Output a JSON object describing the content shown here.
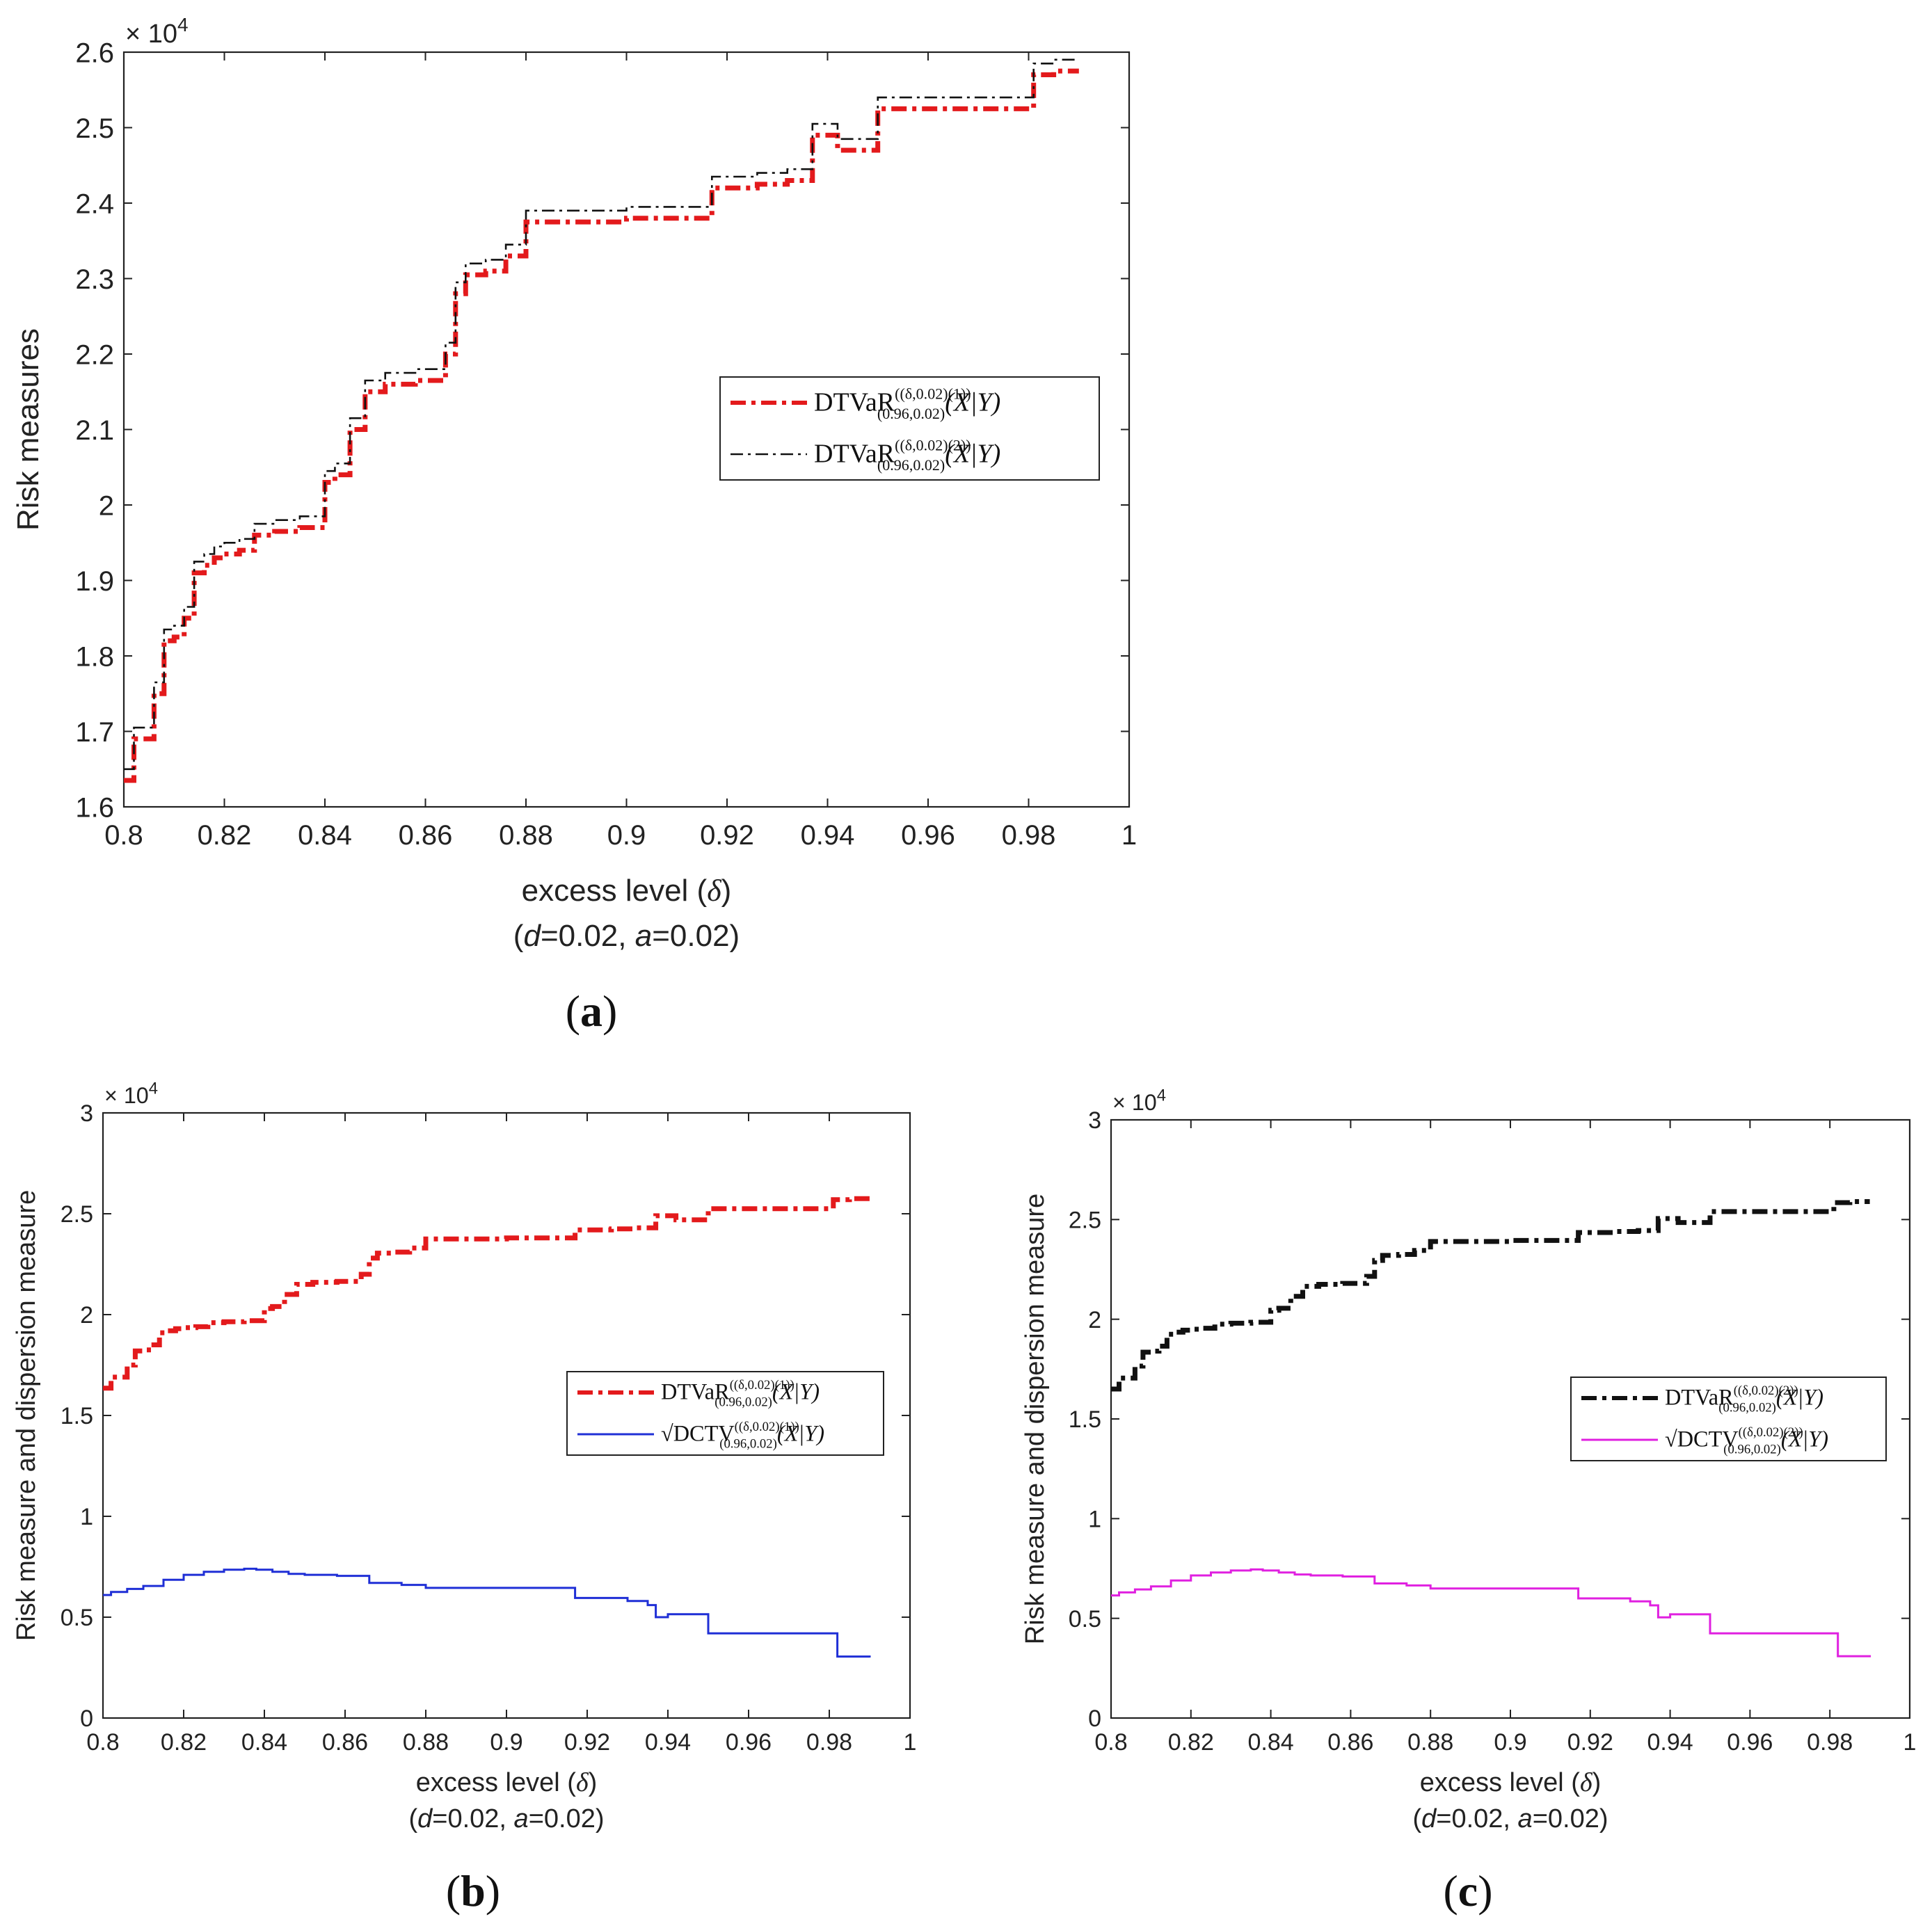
{
  "figure": {
    "panel_labels": [
      "(a)",
      "(b)",
      "(c)"
    ]
  },
  "chart_data": [
    {
      "id": "a",
      "type": "line",
      "panel_label": "(a)",
      "xlabel": "excess level (δ)",
      "subtitle": "(d=0.02, a=0.02)",
      "ylabel": "Risk measures",
      "exponent_label": "× 10^4",
      "xlim": [
        0.8,
        1.0
      ],
      "ylim": [
        16000,
        26000
      ],
      "xticks": [
        0.8,
        0.82,
        0.84,
        0.86,
        0.88,
        0.9,
        0.92,
        0.94,
        0.96,
        0.98,
        1
      ],
      "xtick_labels": [
        "0.8",
        "0.82",
        "0.84",
        "0.86",
        "0.88",
        "0.9",
        "0.92",
        "0.94",
        "0.96",
        "0.98",
        "1"
      ],
      "yticks": [
        16000,
        17000,
        18000,
        19000,
        20000,
        21000,
        22000,
        23000,
        24000,
        25000,
        26000
      ],
      "ytick_labels": [
        "1.6",
        "1.7",
        "1.8",
        "1.9",
        "2",
        "2.1",
        "2.2",
        "2.3",
        "2.4",
        "2.5",
        "2.6"
      ],
      "legend_position": "center-right",
      "series": [
        {
          "name": "DTVaR_(0.96,0.02)^((δ,0.02)(1))(X|Y)",
          "color": "#e31a1c",
          "style": "dash-dot-thick",
          "x": [
            0.8,
            0.802,
            0.804,
            0.806,
            0.808,
            0.81,
            0.812,
            0.814,
            0.816,
            0.818,
            0.82,
            0.823,
            0.826,
            0.83,
            0.835,
            0.84,
            0.842,
            0.845,
            0.848,
            0.852,
            0.858,
            0.864,
            0.866,
            0.868,
            0.872,
            0.876,
            0.88,
            0.89,
            0.9,
            0.91,
            0.917,
            0.92,
            0.926,
            0.932,
            0.937,
            0.939,
            0.942,
            0.948,
            0.95,
            0.96,
            0.97,
            0.979,
            0.981,
            0.985,
            0.99
          ],
          "values": [
            16350,
            16900,
            16900,
            17500,
            18200,
            18250,
            18500,
            19100,
            19200,
            19300,
            19350,
            19400,
            19600,
            19650,
            19700,
            20300,
            20400,
            21000,
            21500,
            21600,
            21650,
            22000,
            22800,
            23050,
            23100,
            23300,
            23750,
            23750,
            23800,
            23800,
            24200,
            24200,
            24250,
            24300,
            24900,
            24900,
            24700,
            24700,
            25250,
            25250,
            25250,
            25250,
            25700,
            25750,
            25750
          ]
        },
        {
          "name": "DTVaR_(0.96,0.02)^((δ,0.02)(2))(X|Y)",
          "color": "#111111",
          "style": "dash-dot-thin",
          "x": [
            0.8,
            0.802,
            0.804,
            0.806,
            0.808,
            0.81,
            0.812,
            0.814,
            0.816,
            0.818,
            0.82,
            0.823,
            0.826,
            0.83,
            0.835,
            0.84,
            0.842,
            0.845,
            0.848,
            0.852,
            0.858,
            0.864,
            0.866,
            0.868,
            0.872,
            0.876,
            0.88,
            0.89,
            0.9,
            0.91,
            0.917,
            0.92,
            0.926,
            0.932,
            0.937,
            0.939,
            0.942,
            0.948,
            0.95,
            0.96,
            0.97,
            0.979,
            0.981,
            0.985,
            0.99
          ],
          "values": [
            16500,
            17050,
            17050,
            17650,
            18350,
            18400,
            18650,
            19250,
            19350,
            19450,
            19500,
            19550,
            19750,
            19800,
            19850,
            20450,
            20550,
            21150,
            21650,
            21750,
            21800,
            22150,
            22950,
            23200,
            23250,
            23450,
            23900,
            23900,
            23950,
            23950,
            24350,
            24350,
            24400,
            24450,
            25050,
            25050,
            24850,
            24850,
            25400,
            25400,
            25400,
            25400,
            25850,
            25900,
            25900
          ]
        }
      ]
    },
    {
      "id": "b",
      "type": "line",
      "panel_label": "(b)",
      "xlabel": "excess level (δ)",
      "subtitle": "(d=0.02, a=0.02)",
      "ylabel": "Risk measure and dispersion measure",
      "exponent_label": "× 10^4",
      "xlim": [
        0.8,
        1.0
      ],
      "ylim": [
        0,
        30000
      ],
      "xticks": [
        0.8,
        0.82,
        0.84,
        0.86,
        0.88,
        0.9,
        0.92,
        0.94,
        0.96,
        0.98,
        1
      ],
      "xtick_labels": [
        "0.8",
        "0.82",
        "0.84",
        "0.86",
        "0.88",
        "0.9",
        "0.92",
        "0.94",
        "0.96",
        "0.98",
        "1"
      ],
      "yticks": [
        0,
        5000,
        10000,
        15000,
        20000,
        25000,
        30000
      ],
      "ytick_labels": [
        "0",
        "0.5",
        "1",
        "1.5",
        "2",
        "2.5",
        "3"
      ],
      "legend_position": "center-right",
      "series": [
        {
          "name": "DTVaR_(0.96,0.02)^((δ,0.02)(1))(X|Y)",
          "color": "#e31a1c",
          "style": "dash-dot-thick",
          "x": [
            0.8,
            0.802,
            0.804,
            0.806,
            0.808,
            0.81,
            0.812,
            0.814,
            0.816,
            0.818,
            0.82,
            0.823,
            0.826,
            0.83,
            0.835,
            0.84,
            0.842,
            0.845,
            0.848,
            0.852,
            0.858,
            0.864,
            0.866,
            0.868,
            0.872,
            0.876,
            0.88,
            0.89,
            0.9,
            0.91,
            0.917,
            0.92,
            0.926,
            0.932,
            0.937,
            0.939,
            0.942,
            0.948,
            0.95,
            0.96,
            0.97,
            0.979,
            0.981,
            0.985,
            0.99
          ],
          "values": [
            16350,
            16900,
            16900,
            17500,
            18200,
            18250,
            18500,
            19100,
            19200,
            19300,
            19350,
            19400,
            19600,
            19650,
            19700,
            20300,
            20400,
            21000,
            21500,
            21600,
            21650,
            22000,
            22800,
            23050,
            23100,
            23300,
            23750,
            23750,
            23800,
            23800,
            24200,
            24200,
            24250,
            24300,
            24900,
            24900,
            24700,
            24700,
            25250,
            25250,
            25250,
            25250,
            25700,
            25750,
            25750
          ]
        },
        {
          "name": "√DCTV_(0.96,0.02)^((δ,0.02)(1))(X|Y)",
          "color": "#1f2fd6",
          "style": "solid",
          "x": [
            0.8,
            0.802,
            0.806,
            0.81,
            0.815,
            0.82,
            0.825,
            0.83,
            0.835,
            0.838,
            0.842,
            0.846,
            0.85,
            0.858,
            0.866,
            0.874,
            0.88,
            0.9,
            0.917,
            0.93,
            0.935,
            0.937,
            0.94,
            0.945,
            0.95,
            0.96,
            0.97,
            0.979,
            0.982,
            0.99
          ],
          "values": [
            6100,
            6250,
            6400,
            6550,
            6850,
            7100,
            7250,
            7350,
            7400,
            7350,
            7250,
            7150,
            7100,
            7050,
            6700,
            6600,
            6450,
            6450,
            5950,
            5800,
            5600,
            5000,
            5150,
            5150,
            4200,
            4200,
            4200,
            4200,
            3050,
            3000
          ]
        }
      ]
    },
    {
      "id": "c",
      "type": "line",
      "panel_label": "(c)",
      "xlabel": "excess level (δ)",
      "subtitle": "(d=0.02, a=0.02)",
      "ylabel": "Risk measure and dispersion measure",
      "exponent_label": "× 10^4",
      "xlim": [
        0.8,
        1.0
      ],
      "ylim": [
        0,
        30000
      ],
      "xticks": [
        0.8,
        0.82,
        0.84,
        0.86,
        0.88,
        0.9,
        0.92,
        0.94,
        0.96,
        0.98,
        1
      ],
      "xtick_labels": [
        "0.8",
        "0.82",
        "0.84",
        "0.86",
        "0.88",
        "0.9",
        "0.92",
        "0.94",
        "0.96",
        "0.98",
        "1"
      ],
      "yticks": [
        0,
        5000,
        10000,
        15000,
        20000,
        25000,
        30000
      ],
      "ytick_labels": [
        "0",
        "0.5",
        "1",
        "1.5",
        "2",
        "2.5",
        "3"
      ],
      "legend_position": "center-right",
      "series": [
        {
          "name": "DTVaR_(0.96,0.02)^((δ,0.02)(2))(X|Y)",
          "color": "#111111",
          "style": "dash-dot-thick",
          "x": [
            0.8,
            0.802,
            0.804,
            0.806,
            0.808,
            0.81,
            0.812,
            0.814,
            0.816,
            0.818,
            0.82,
            0.823,
            0.826,
            0.83,
            0.835,
            0.84,
            0.842,
            0.845,
            0.848,
            0.852,
            0.858,
            0.864,
            0.866,
            0.868,
            0.872,
            0.876,
            0.88,
            0.89,
            0.9,
            0.91,
            0.917,
            0.92,
            0.926,
            0.932,
            0.937,
            0.939,
            0.942,
            0.948,
            0.95,
            0.96,
            0.97,
            0.979,
            0.981,
            0.985,
            0.99
          ],
          "values": [
            16500,
            17050,
            17050,
            17650,
            18350,
            18400,
            18650,
            19250,
            19350,
            19450,
            19500,
            19550,
            19750,
            19800,
            19850,
            20450,
            20550,
            21150,
            21650,
            21750,
            21800,
            22150,
            22950,
            23200,
            23250,
            23450,
            23900,
            23900,
            23950,
            23950,
            24350,
            24350,
            24400,
            24450,
            25050,
            25050,
            24850,
            24850,
            25400,
            25400,
            25400,
            25400,
            25850,
            25900,
            25900
          ]
        },
        {
          "name": "√DCTV_(0.96,0.02)^((δ,0.02)(2))(X|Y)",
          "color": "#e020e0",
          "style": "solid",
          "x": [
            0.8,
            0.802,
            0.806,
            0.81,
            0.815,
            0.82,
            0.825,
            0.83,
            0.835,
            0.838,
            0.842,
            0.846,
            0.85,
            0.858,
            0.866,
            0.874,
            0.88,
            0.9,
            0.917,
            0.93,
            0.935,
            0.937,
            0.94,
            0.945,
            0.95,
            0.96,
            0.97,
            0.979,
            0.982,
            0.99
          ],
          "values": [
            6150,
            6300,
            6450,
            6600,
            6900,
            7150,
            7300,
            7400,
            7450,
            7400,
            7300,
            7200,
            7150,
            7100,
            6750,
            6650,
            6500,
            6500,
            6000,
            5850,
            5650,
            5050,
            5200,
            5200,
            4250,
            4250,
            4250,
            4250,
            3100,
            3050
          ]
        }
      ]
    }
  ]
}
